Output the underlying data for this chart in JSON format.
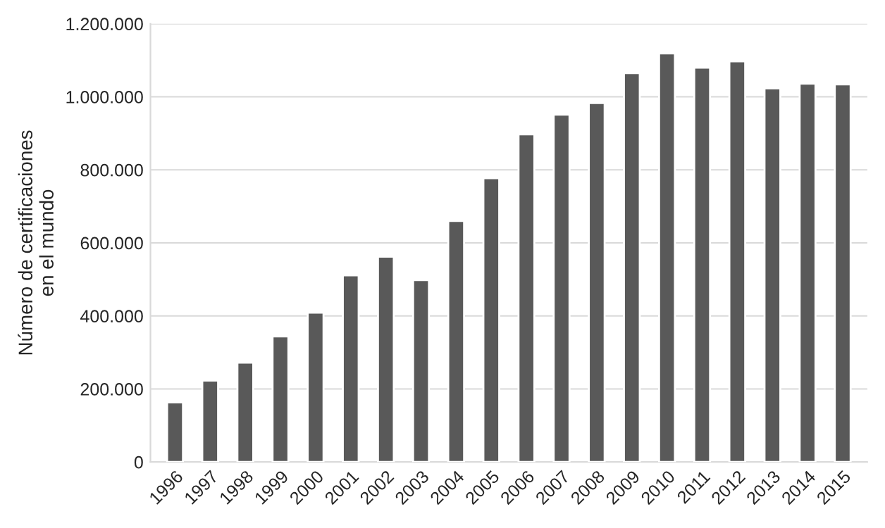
{
  "chart_data": {
    "type": "bar",
    "ylabel": "Número de certificaciones\nen el mundo",
    "categories": [
      "1996",
      "1997",
      "1998",
      "1999",
      "2000",
      "2001",
      "2002",
      "2003",
      "2004",
      "2005",
      "2006",
      "2007",
      "2008",
      "2009",
      "2010",
      "2011",
      "2012",
      "2013",
      "2014",
      "2015"
    ],
    "values": [
      163000,
      223000,
      272000,
      344000,
      409000,
      511000,
      562000,
      498000,
      660000,
      777000,
      897000,
      951000,
      983000,
      1065000,
      1119000,
      1080000,
      1097000,
      1023000,
      1036000,
      1034000
    ],
    "color": "#595959",
    "ylim": [
      0,
      1200000
    ],
    "yticks": [
      0,
      {
        "value": 200000,
        "label": "200.000"
      },
      {
        "value": 400000,
        "label": "400.000"
      },
      {
        "value": 600000,
        "label": "600.000"
      },
      {
        "value": 800000,
        "label": "800.000"
      },
      {
        "value": 1000000,
        "label": "1.000.000"
      },
      {
        "value": 1200000,
        "label": "1.200.000"
      }
    ],
    "grid": "y",
    "legend": false
  }
}
